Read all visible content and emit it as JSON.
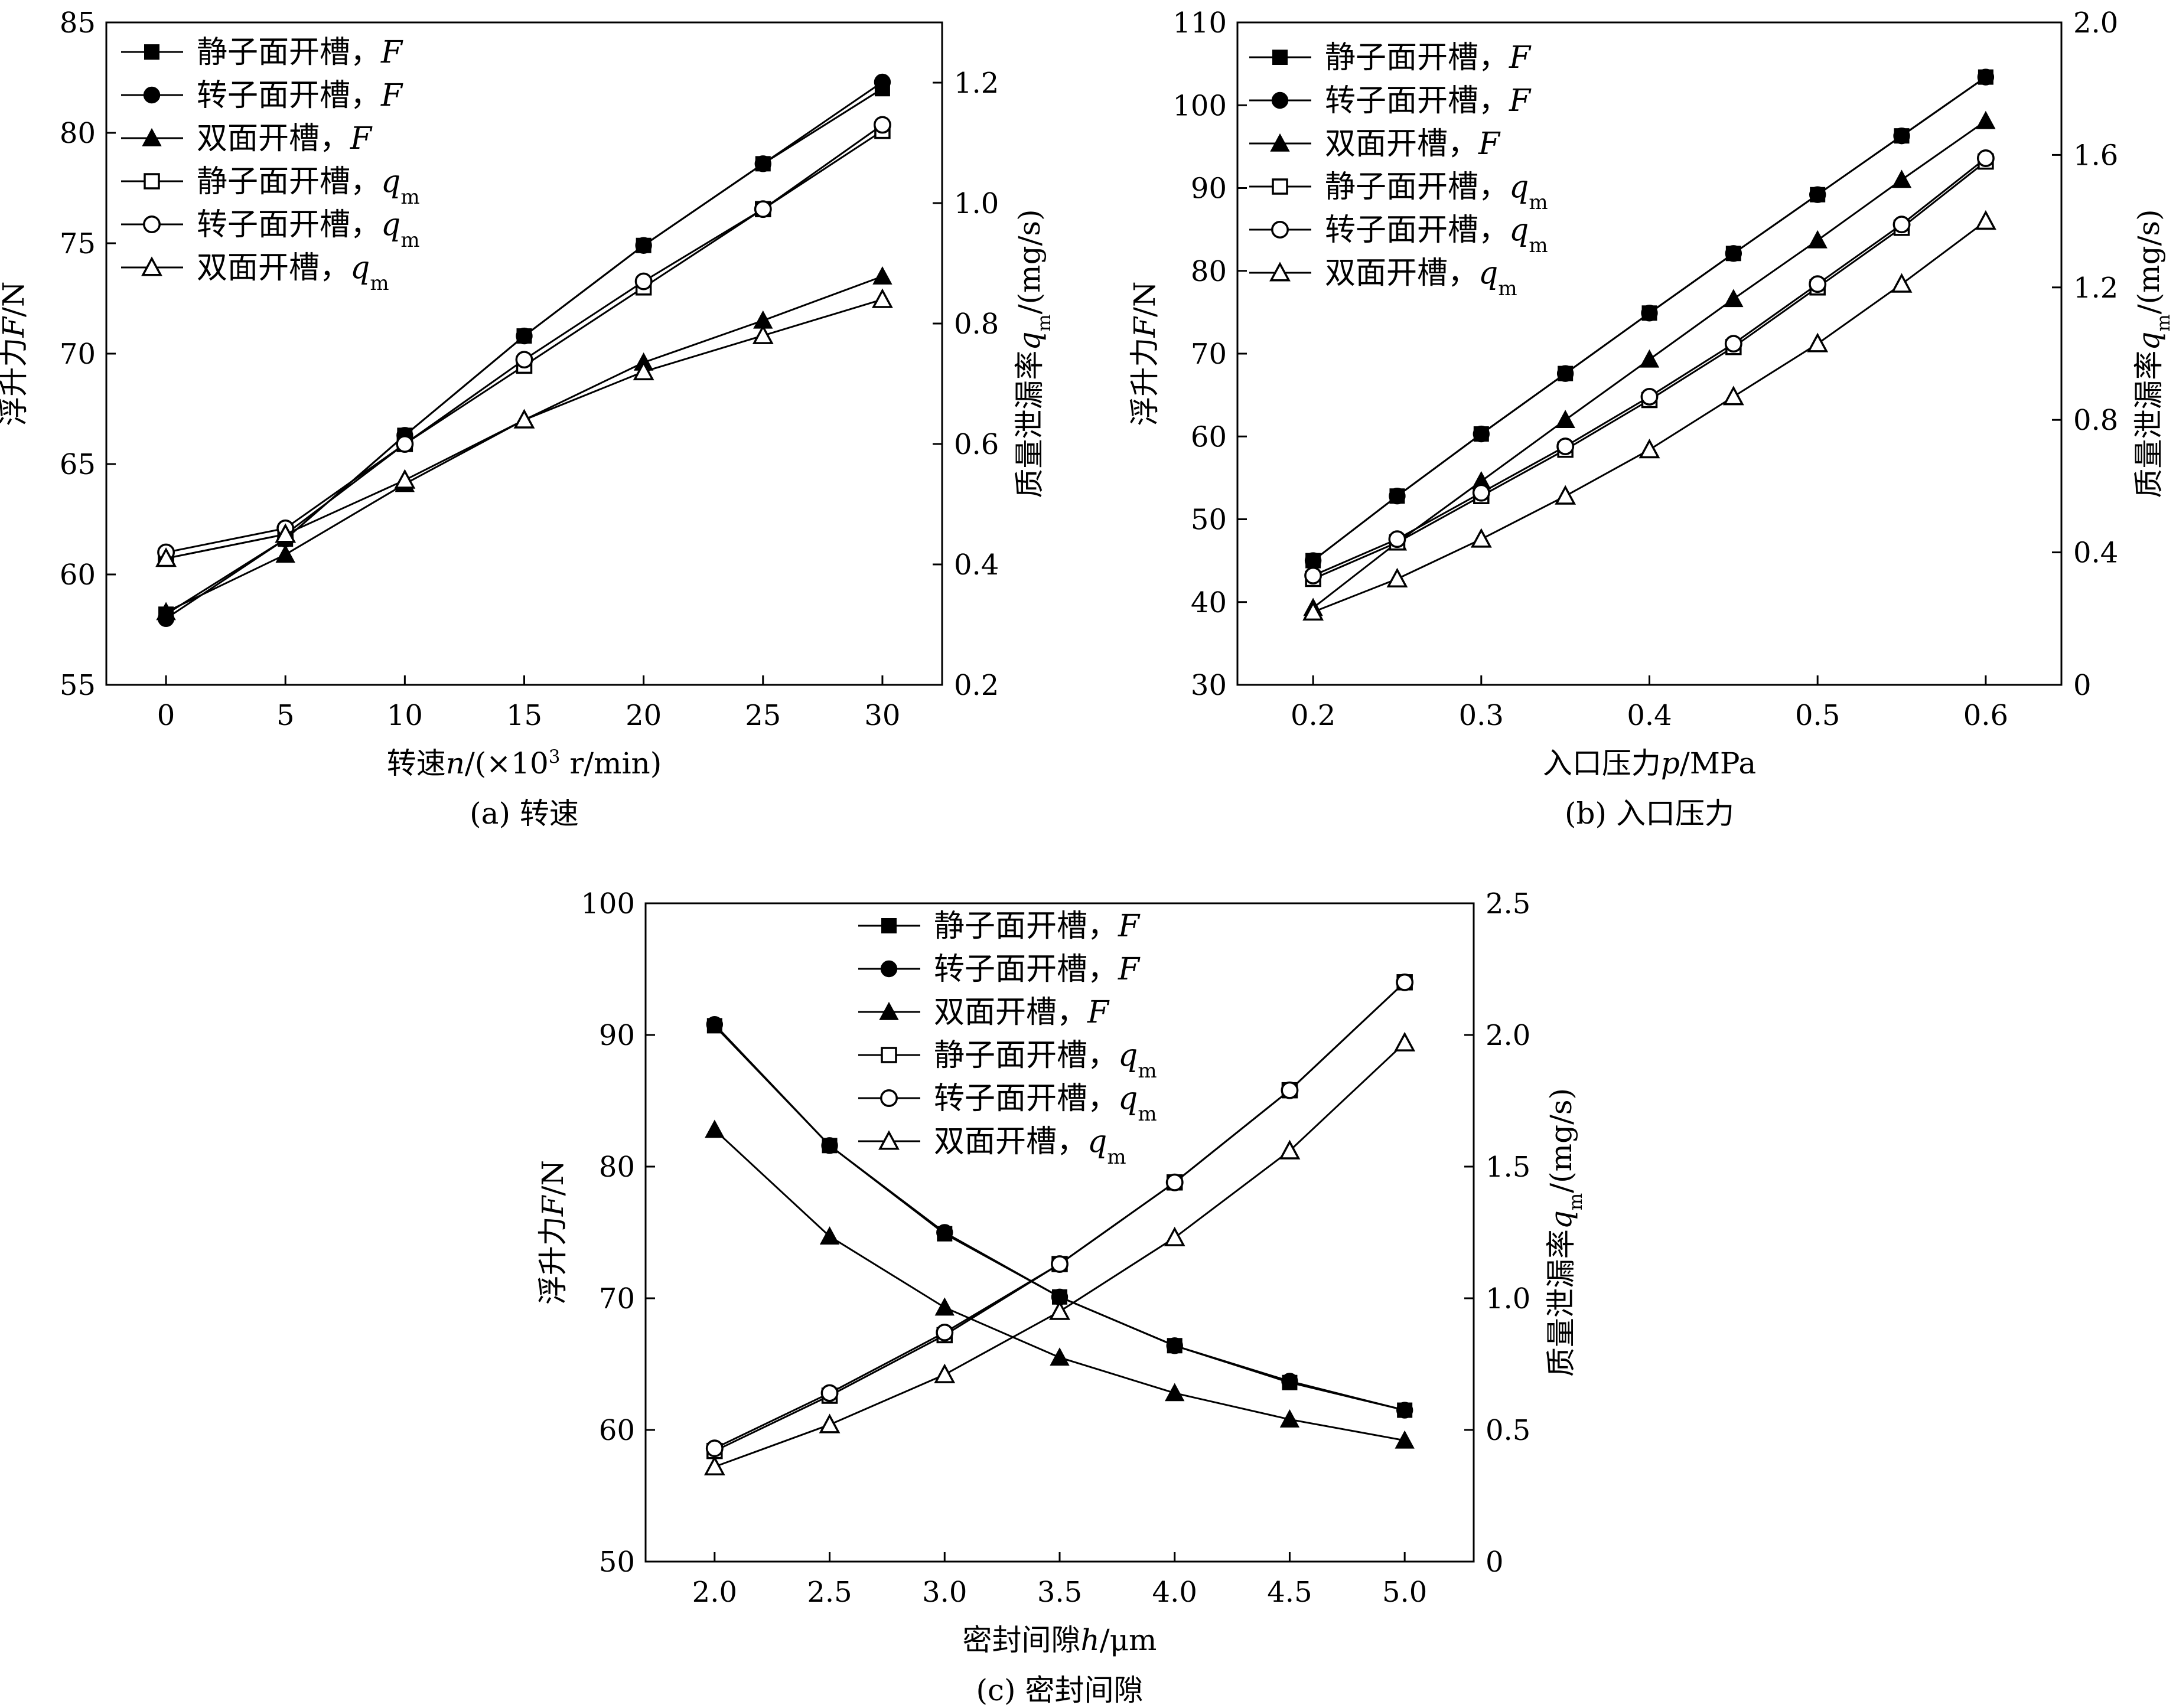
{
  "colors": {
    "ink": "#000000",
    "background": "#ffffff"
  },
  "legend_sep": "，",
  "chart_data": [
    {
      "id": "a",
      "type": "line",
      "caption": "(a) 转速",
      "xlabel": {
        "parts": [
          {
            "t": "转速"
          },
          {
            "t": "n",
            "i": true
          },
          {
            "t": "/(×10"
          },
          {
            "t": "3",
            "sup": true
          },
          {
            "t": " r/min)"
          }
        ]
      },
      "ylabel_left": {
        "parts": [
          {
            "t": "浮升力"
          },
          {
            "t": "F",
            "i": true
          },
          {
            "t": "/N"
          }
        ]
      },
      "ylabel_right": {
        "parts": [
          {
            "t": "质量泄漏率"
          },
          {
            "t": "q",
            "i": true
          },
          {
            "t": "m",
            "sub": true
          },
          {
            "t": "/(mg/s)"
          }
        ]
      },
      "x": [
        0,
        5,
        10,
        15,
        20,
        25,
        30
      ],
      "x_ticks": [
        0,
        5,
        10,
        15,
        20,
        25,
        30
      ],
      "x_tick_labels": [
        "0",
        "5",
        "10",
        "15",
        "20",
        "25",
        "30"
      ],
      "xlim": [
        -2.5,
        32.5
      ],
      "y_left_ticks": [
        55,
        60,
        65,
        70,
        75,
        80,
        85
      ],
      "y_left_tick_labels": [
        "55",
        "60",
        "65",
        "70",
        "75",
        "80",
        "85"
      ],
      "y_left_lim": [
        55,
        85
      ],
      "y_right_ticks": [
        0.2,
        0.4,
        0.6,
        0.8,
        1.0,
        1.2
      ],
      "y_right_tick_labels": [
        "0.2",
        "0.4",
        "0.6",
        "0.8",
        "1.0",
        "1.2"
      ],
      "y_right_lim": [
        0.2,
        1.3
      ],
      "legend_loc": "top-left",
      "series": [
        {
          "name": "静子面开槽",
          "var": "F",
          "sub": "",
          "marker": "square",
          "filled": true,
          "axis": "left",
          "values": [
            58.2,
            61.6,
            66.3,
            70.8,
            74.9,
            78.6,
            82.0
          ]
        },
        {
          "name": "转子面开槽",
          "var": "F",
          "sub": "",
          "marker": "circle",
          "filled": true,
          "axis": "left",
          "values": [
            58.0,
            61.6,
            66.3,
            70.8,
            74.9,
            78.6,
            82.3
          ]
        },
        {
          "name": "双面开槽",
          "var": "F",
          "sub": "",
          "marker": "triangle",
          "filled": true,
          "axis": "left",
          "values": [
            58.3,
            60.9,
            64.1,
            67.0,
            69.6,
            71.5,
            73.5
          ]
        },
        {
          "name": "静子面开槽",
          "var": "q",
          "sub": "m",
          "marker": "square",
          "filled": false,
          "axis": "right",
          "values": [
            0.41,
            0.45,
            0.6,
            0.73,
            0.86,
            0.99,
            1.12
          ]
        },
        {
          "name": "转子面开槽",
          "var": "q",
          "sub": "m",
          "marker": "circle",
          "filled": false,
          "axis": "right",
          "values": [
            0.42,
            0.46,
            0.6,
            0.74,
            0.87,
            0.99,
            1.13
          ]
        },
        {
          "name": "双面开槽",
          "var": "q",
          "sub": "m",
          "marker": "triangle",
          "filled": false,
          "axis": "right",
          "values": [
            0.41,
            0.45,
            0.54,
            0.64,
            0.72,
            0.78,
            0.84
          ]
        }
      ]
    },
    {
      "id": "b",
      "type": "line",
      "caption": "(b) 入口压力",
      "xlabel": {
        "parts": [
          {
            "t": "入口压力"
          },
          {
            "t": "p",
            "i": true
          },
          {
            "t": "/MPa"
          }
        ]
      },
      "ylabel_left": {
        "parts": [
          {
            "t": "浮升力"
          },
          {
            "t": "F",
            "i": true
          },
          {
            "t": "/N"
          }
        ]
      },
      "ylabel_right": {
        "parts": [
          {
            "t": "质量泄漏率"
          },
          {
            "t": "q",
            "i": true
          },
          {
            "t": "m",
            "sub": true
          },
          {
            "t": "/(mg/s)"
          }
        ]
      },
      "x": [
        0.2,
        0.25,
        0.3,
        0.35,
        0.4,
        0.45,
        0.5,
        0.55,
        0.6
      ],
      "x_ticks": [
        0.2,
        0.3,
        0.4,
        0.5,
        0.6
      ],
      "x_tick_labels": [
        "0.2",
        "0.3",
        "0.4",
        "0.5",
        "0.6"
      ],
      "xlim": [
        0.155,
        0.645
      ],
      "y_left_ticks": [
        30,
        40,
        50,
        60,
        70,
        80,
        90,
        100,
        110
      ],
      "y_left_tick_labels": [
        "30",
        "40",
        "50",
        "60",
        "70",
        "80",
        "90",
        "100",
        "110"
      ],
      "y_left_lim": [
        30,
        110
      ],
      "y_right_ticks": [
        0,
        0.4,
        0.8,
        1.2,
        1.6,
        2.0
      ],
      "y_right_tick_labels": [
        "0",
        "0.4",
        "0.8",
        "1.2",
        "1.6",
        "2.0"
      ],
      "y_right_lim": [
        0,
        2.0
      ],
      "legend_loc": "top-left",
      "series": [
        {
          "name": "静子面开槽",
          "var": "F",
          "sub": "",
          "marker": "square",
          "filled": true,
          "axis": "left",
          "values": [
            45.0,
            52.8,
            60.3,
            67.6,
            74.9,
            82.1,
            89.2,
            96.3,
            103.4
          ]
        },
        {
          "name": "转子面开槽",
          "var": "F",
          "sub": "",
          "marker": "circle",
          "filled": true,
          "axis": "left",
          "values": [
            45.0,
            52.8,
            60.3,
            67.6,
            74.9,
            82.1,
            89.2,
            96.3,
            103.4
          ]
        },
        {
          "name": "双面开槽",
          "var": "F",
          "sub": "",
          "marker": "triangle",
          "filled": true,
          "axis": "left",
          "values": [
            39.3,
            47.2,
            54.6,
            62.0,
            69.3,
            76.6,
            83.7,
            91.0,
            98.1
          ]
        },
        {
          "name": "静子面开槽",
          "var": "q",
          "sub": "m",
          "marker": "square",
          "filled": false,
          "axis": "right",
          "values": [
            0.32,
            0.43,
            0.57,
            0.71,
            0.86,
            1.02,
            1.2,
            1.38,
            1.58
          ]
        },
        {
          "name": "转子面开槽",
          "var": "q",
          "sub": "m",
          "marker": "circle",
          "filled": false,
          "axis": "right",
          "values": [
            0.33,
            0.44,
            0.58,
            0.72,
            0.87,
            1.03,
            1.21,
            1.39,
            1.59
          ]
        },
        {
          "name": "双面开槽",
          "var": "q",
          "sub": "m",
          "marker": "triangle",
          "filled": false,
          "axis": "right",
          "values": [
            0.22,
            0.32,
            0.44,
            0.57,
            0.71,
            0.87,
            1.03,
            1.21,
            1.4
          ]
        }
      ]
    },
    {
      "id": "c",
      "type": "line",
      "caption": "(c) 密封间隙",
      "xlabel": {
        "parts": [
          {
            "t": "密封间隙"
          },
          {
            "t": "h",
            "i": true
          },
          {
            "t": "/μm"
          }
        ]
      },
      "ylabel_left": {
        "parts": [
          {
            "t": "浮升力"
          },
          {
            "t": "F",
            "i": true
          },
          {
            "t": "/N"
          }
        ]
      },
      "ylabel_right": {
        "parts": [
          {
            "t": "质量泄漏率"
          },
          {
            "t": "q",
            "i": true
          },
          {
            "t": "m",
            "sub": true
          },
          {
            "t": "/(mg/s)"
          }
        ]
      },
      "x": [
        2.0,
        2.5,
        3.0,
        3.5,
        4.0,
        4.5,
        5.0
      ],
      "x_ticks": [
        2.0,
        2.5,
        3.0,
        3.5,
        4.0,
        4.5,
        5.0
      ],
      "x_tick_labels": [
        "2.0",
        "2.5",
        "3.0",
        "3.5",
        "4.0",
        "4.5",
        "5.0"
      ],
      "xlim": [
        1.7,
        5.3
      ],
      "y_left_ticks": [
        50,
        60,
        70,
        80,
        90,
        100
      ],
      "y_left_tick_labels": [
        "50",
        "60",
        "70",
        "80",
        "90",
        "100"
      ],
      "y_left_lim": [
        50,
        100
      ],
      "y_right_ticks": [
        0,
        0.5,
        1.0,
        1.5,
        2.0,
        2.5
      ],
      "y_right_tick_labels": [
        "0",
        "0.5",
        "1.0",
        "1.5",
        "2.0",
        "2.5"
      ],
      "y_right_lim": [
        0,
        2.5
      ],
      "legend_loc": "top-center",
      "series": [
        {
          "name": "静子面开槽",
          "var": "F",
          "sub": "",
          "marker": "square",
          "filled": true,
          "axis": "left",
          "values": [
            90.7,
            81.6,
            74.9,
            70.1,
            66.4,
            63.6,
            61.5
          ]
        },
        {
          "name": "转子面开槽",
          "var": "F",
          "sub": "",
          "marker": "circle",
          "filled": true,
          "axis": "left",
          "values": [
            90.8,
            81.6,
            75.0,
            70.1,
            66.4,
            63.7,
            61.5
          ]
        },
        {
          "name": "双面开槽",
          "var": "F",
          "sub": "",
          "marker": "triangle",
          "filled": true,
          "axis": "left",
          "values": [
            82.8,
            74.7,
            69.3,
            65.5,
            62.8,
            60.8,
            59.2
          ]
        },
        {
          "name": "静子面开槽",
          "var": "q",
          "sub": "m",
          "marker": "square",
          "filled": false,
          "axis": "right",
          "values": [
            0.42,
            0.63,
            0.86,
            1.13,
            1.44,
            1.79,
            2.2
          ]
        },
        {
          "name": "转子面开槽",
          "var": "q",
          "sub": "m",
          "marker": "circle",
          "filled": false,
          "axis": "right",
          "values": [
            0.43,
            0.64,
            0.87,
            1.13,
            1.44,
            1.79,
            2.2
          ]
        },
        {
          "name": "双面开槽",
          "var": "q",
          "sub": "m",
          "marker": "triangle",
          "filled": false,
          "axis": "right",
          "values": [
            0.36,
            0.52,
            0.71,
            0.95,
            1.23,
            1.56,
            1.97
          ]
        }
      ]
    }
  ]
}
